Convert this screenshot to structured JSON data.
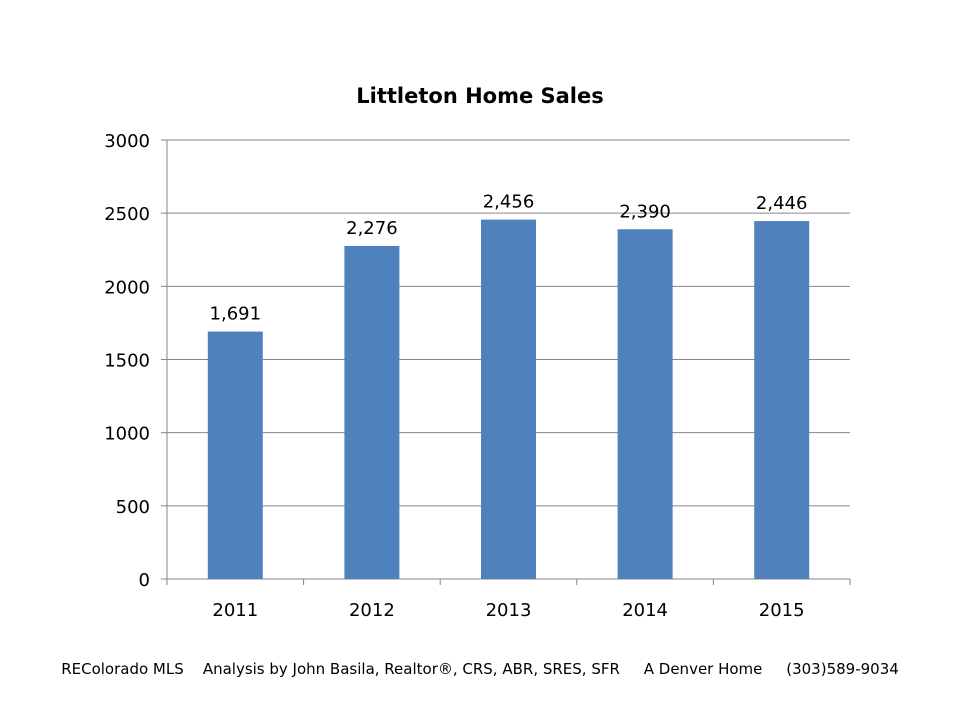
{
  "chart_data": {
    "type": "bar",
    "title": "Littleton Home Sales",
    "categories": [
      "2011",
      "2012",
      "2013",
      "2014",
      "2015"
    ],
    "values": [
      1691,
      2276,
      2456,
      2390,
      2446
    ],
    "data_labels": [
      "1,691",
      "2,276",
      "2,456",
      "2,390",
      "2,446"
    ],
    "ylim": [
      0,
      3000
    ],
    "yticks": [
      0,
      500,
      1000,
      1500,
      2000,
      2500,
      3000
    ],
    "xlabel": "",
    "ylabel": "",
    "grid": true,
    "legend": "none",
    "bar_color": "#4F81BD"
  },
  "footer": {
    "text": "REColorado MLS    Analysis by John Basila, Realtor®, CRS, ABR, SRES, SFR     A Denver Home     (303)589-9034"
  }
}
